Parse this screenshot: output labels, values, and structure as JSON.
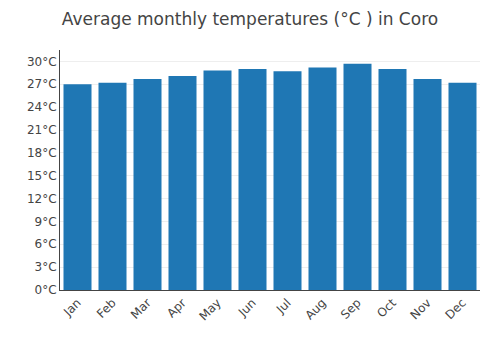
{
  "chart_data": {
    "type": "bar",
    "title": "Average monthly temperatures (°C ) in Coro",
    "categories": [
      "Jan",
      "Feb",
      "Mar",
      "Apr",
      "May",
      "Jun",
      "Jul",
      "Aug",
      "Sep",
      "Oct",
      "Nov",
      "Dec"
    ],
    "values": [
      27.0,
      27.2,
      27.7,
      28.1,
      28.8,
      29.0,
      28.7,
      29.2,
      29.7,
      29.0,
      27.7,
      27.2
    ],
    "ylim": [
      0,
      31.5
    ],
    "yticks": [
      {
        "value": 0,
        "label": "0°C"
      },
      {
        "value": 3,
        "label": "3°C"
      },
      {
        "value": 6,
        "label": "6°C"
      },
      {
        "value": 9,
        "label": "9°C"
      },
      {
        "value": 12,
        "label": "12°C"
      },
      {
        "value": 15,
        "label": "15°C"
      },
      {
        "value": 18,
        "label": "18°C"
      },
      {
        "value": 21,
        "label": "21°C"
      },
      {
        "value": 24,
        "label": "24°C"
      },
      {
        "value": 27,
        "label": "27°C"
      },
      {
        "value": 30,
        "label": "30°C"
      }
    ],
    "grid": true
  }
}
